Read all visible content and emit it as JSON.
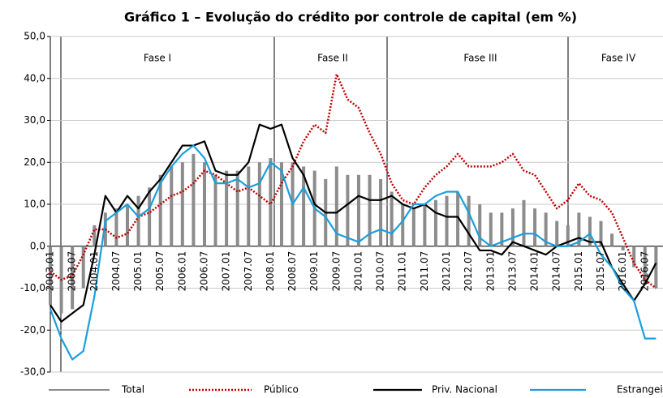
{
  "chart_data": {
    "type": "line",
    "title": "Gráfico 1 – Evolução do crédito por controle de capital (em %)",
    "categories": [
      "2003.01",
      null,
      "2003.07",
      null,
      "2004.01",
      null,
      "2004.07",
      null,
      "2005.01",
      null,
      "2005.07",
      null,
      "2006.01",
      null,
      "2006.07",
      null,
      "2007.01",
      null,
      "2007.07",
      null,
      "2008.01",
      null,
      "2008.07",
      null,
      "2009.01",
      null,
      "2009.07",
      null,
      "2010.01",
      null,
      "2010.07",
      null,
      "2011.01",
      null,
      "2011.07",
      null,
      "2012.01",
      null,
      "2012.07",
      null,
      "2013.01",
      null,
      "2013.07",
      null,
      "2014.01",
      null,
      "2014.07",
      null,
      "2015.01",
      null,
      "2015.07",
      null,
      "2016.01",
      null,
      "2016.07",
      null
    ],
    "series": [
      {
        "name": "Total",
        "color": "#8c8c8c",
        "kind": "bar",
        "values": [
          -14,
          -16,
          -15,
          -10,
          5,
          8,
          9,
          10,
          12,
          14,
          17,
          19,
          20,
          22,
          20,
          17,
          18,
          18,
          19,
          20,
          21,
          20,
          20,
          19,
          18,
          16,
          19,
          17,
          17,
          17,
          16,
          13,
          10,
          9,
          10,
          11,
          12,
          13,
          12,
          10,
          8,
          8,
          9,
          11,
          9,
          8,
          6,
          5,
          8,
          7,
          6,
          3,
          -1,
          -5,
          -9,
          -10
        ]
      },
      {
        "name": "Público",
        "color": "#c00000",
        "kind": "dotted",
        "values": [
          -6,
          -8,
          -7,
          -2,
          4,
          4,
          2,
          3,
          7,
          8,
          10,
          12,
          13,
          15,
          18,
          17,
          15,
          13,
          14,
          12,
          10,
          15,
          19,
          25,
          29,
          27,
          41,
          35,
          33,
          27,
          22,
          15,
          11,
          10,
          14,
          17,
          19,
          22,
          19,
          19,
          19,
          20,
          22,
          18,
          17,
          13,
          9,
          11,
          15,
          12,
          11,
          8,
          2,
          -4,
          -8,
          -10
        ]
      },
      {
        "name": "Priv. Nacional",
        "color": "#000000",
        "kind": "solid",
        "values": [
          -14,
          -18,
          -16,
          -14,
          -2,
          12,
          8,
          12,
          9,
          13,
          16,
          20,
          24,
          24,
          25,
          18,
          17,
          17,
          20,
          29,
          28,
          29,
          21,
          17,
          10,
          8,
          8,
          10,
          12,
          11,
          11,
          12,
          10,
          9,
          10,
          8,
          7,
          7,
          3,
          -1,
          -1,
          -2,
          1,
          0,
          -1,
          -2,
          0,
          1,
          2,
          1,
          1,
          -5,
          -9,
          -13,
          -9,
          -4
        ]
      },
      {
        "name": "Estrangeiro",
        "color": "#1a9fdb",
        "kind": "solid",
        "values": [
          -15,
          -22,
          -27,
          -25,
          -12,
          6,
          8,
          10,
          7,
          9,
          15,
          19,
          22,
          24,
          21,
          15,
          15,
          16,
          14,
          15,
          20,
          18,
          10,
          14,
          9,
          7,
          3,
          2,
          1,
          3,
          4,
          3,
          6,
          10,
          10,
          12,
          13,
          13,
          8,
          2,
          0,
          1,
          2,
          3,
          3,
          1,
          0,
          0,
          1,
          3,
          -2,
          -5,
          -10,
          -13,
          -22,
          -22
        ]
      }
    ],
    "phases": [
      "Fase I",
      "Fase II",
      "Fase III",
      "Fase IV"
    ],
    "ylim": [
      -30,
      50
    ],
    "yticks": [
      {
        "value": 50,
        "label": "50,0"
      },
      {
        "value": 40,
        "label": "40,0"
      },
      {
        "value": 30,
        "label": "30,0"
      },
      {
        "value": 20,
        "label": "20,0"
      },
      {
        "value": 10,
        "label": "10,0"
      },
      {
        "value": 0,
        "label": "0,0"
      },
      {
        "value": -10,
        "label": "-10,0"
      },
      {
        "value": -20,
        "label": "-20,0"
      },
      {
        "value": -30,
        "label": "-30,0"
      }
    ],
    "grid": true
  }
}
